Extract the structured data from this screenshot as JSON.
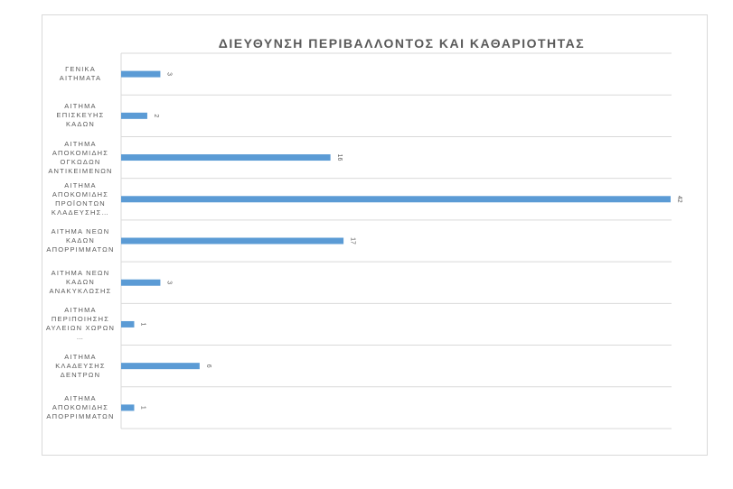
{
  "chart_data": {
    "type": "bar",
    "orientation": "horizontal",
    "title": "ΔΙΕΥΘΥΝΣΗ ΠΕΡΙΒΑΛΛΟΝΤΟΣ ΚΑΙ ΚΑΘΑΡΙΟΤΗΤΑΣ",
    "categories": [
      "ΓΕΝΙΚΑ\nΑΙΤΗΜΑΤΑ",
      "ΑΙΤΗΜΑ\nΕΠΙΣΚΕΥΗΣ\nΚΑΔΩΝ",
      "ΑΙΤΗΜΑ\nΑΠΟΚΟΜΙΔΗΣ\nΟΓΚΩΔΩΝ\nΑΝΤΙΚΕΙΜΕΝΩΝ",
      "ΑΙΤΗΜΑ\nΑΠΟΚΟΜΙΔΗΣ\nΠΡΟΪΟΝΤΩΝ\nΚΛΑΔΕΥΣΗΣ…",
      "ΑΙΤΗΜΑ ΝΕΩΝ\nΚΑΔΩΝ\nΑΠΟΡΡΙΜΜΑΤΩΝ",
      "ΑΙΤΗΜΑ ΝΕΩΝ\nΚΑΔΩΝ\nΑΝΑΚΥΚΛΩΣΗΣ",
      "ΑΙΤΗΜΑ\nΠΕΡΙΠΟΙΗΣΗΣ\nΑΥΛΕΙΩΝ ΧΩΡΩΝ\n…",
      "ΑΙΤΗΜΑ\nΚΛΑΔΕΥΣΗΣ\nΔΕΝΤΡΩΝ",
      "ΑΙΤΗΜΑ\nΑΠΟΚΟΜΙΔΗΣ\nΑΠΟΡΡΙΜΜΑΤΩΝ"
    ],
    "values": [
      3,
      2,
      16,
      42,
      17,
      3,
      1,
      6,
      1
    ],
    "value_labels": [
      "3",
      "2",
      "16",
      "42",
      "17",
      "3",
      "1",
      "6",
      "1"
    ],
    "xlim": [
      0,
      42
    ],
    "grid": "horizontal lines between categories",
    "legend": "none",
    "bar_color": "#5b9bd5",
    "grid_color": "#d9d9d9",
    "text_color": "#595959"
  }
}
